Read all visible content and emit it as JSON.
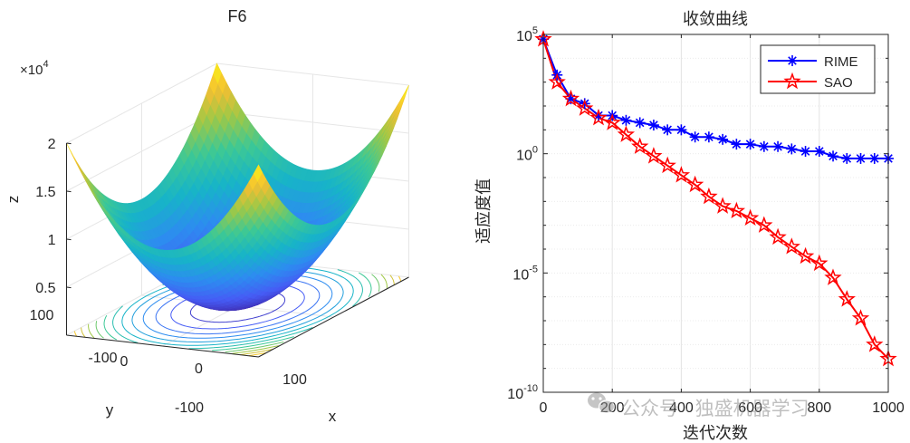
{
  "chart_data": [
    {
      "type": "surface3d",
      "title": "F6",
      "xlabel": "x",
      "ylabel": "y",
      "zlabel": "z",
      "x_ticks": [
        "-100",
        "0",
        "100"
      ],
      "y_ticks": [
        "-100",
        "0",
        "100"
      ],
      "z_ticks": [
        "0.5",
        "1",
        "1.5",
        "2"
      ],
      "z_exponent_base": "×10",
      "z_exponent_power": "4",
      "xlim": [
        -100,
        100
      ],
      "ylim": [
        -100,
        100
      ],
      "zlim": [
        0,
        20000
      ],
      "function": "z = x^2 + y^2",
      "contours": true
    },
    {
      "type": "line",
      "title": "收敛曲线",
      "xlabel": "迭代次数",
      "ylabel": "适应度值",
      "yscale": "log",
      "xlim": [
        0,
        1000
      ],
      "ylim_exp": [
        -10,
        5
      ],
      "x_ticks": [
        "0",
        "200",
        "400",
        "600",
        "800",
        "1000"
      ],
      "y_ticks": [
        {
          "base": "10",
          "exp": "-10",
          "value": -10
        },
        {
          "base": "10",
          "exp": "-5",
          "value": -5
        },
        {
          "base": "10",
          "exp": "0",
          "value": 0
        },
        {
          "base": "10",
          "exp": "5",
          "value": 5
        }
      ],
      "legend_position": "top-right",
      "series": [
        {
          "name": "RIME",
          "color": "#0000ff",
          "marker": "asterisk",
          "x": [
            0,
            40,
            80,
            120,
            160,
            200,
            240,
            280,
            320,
            360,
            400,
            440,
            480,
            520,
            560,
            600,
            640,
            680,
            720,
            760,
            800,
            840,
            880,
            920,
            960,
            1000
          ],
          "log10_y": [
            4.8,
            3.3,
            2.3,
            2.1,
            1.6,
            1.6,
            1.4,
            1.3,
            1.2,
            1.0,
            1.0,
            0.7,
            0.7,
            0.6,
            0.4,
            0.4,
            0.3,
            0.3,
            0.2,
            0.1,
            0.1,
            -0.1,
            -0.2,
            -0.2,
            -0.2,
            -0.2
          ]
        },
        {
          "name": "SAO",
          "color": "#ff0000",
          "marker": "pentagram",
          "x": [
            0,
            40,
            80,
            120,
            160,
            200,
            240,
            280,
            320,
            360,
            400,
            440,
            480,
            520,
            560,
            600,
            640,
            680,
            720,
            760,
            800,
            840,
            880,
            920,
            960,
            1000
          ],
          "log10_y": [
            4.8,
            3.0,
            2.3,
            1.9,
            1.5,
            1.3,
            0.8,
            0.3,
            -0.1,
            -0.5,
            -0.9,
            -1.3,
            -1.8,
            -2.2,
            -2.4,
            -2.7,
            -3.0,
            -3.5,
            -3.9,
            -4.3,
            -4.6,
            -5.2,
            -6.1,
            -6.9,
            -8.0,
            -8.6
          ]
        }
      ]
    }
  ],
  "watermark": {
    "text": "公众号 · 独盛机器学习"
  }
}
